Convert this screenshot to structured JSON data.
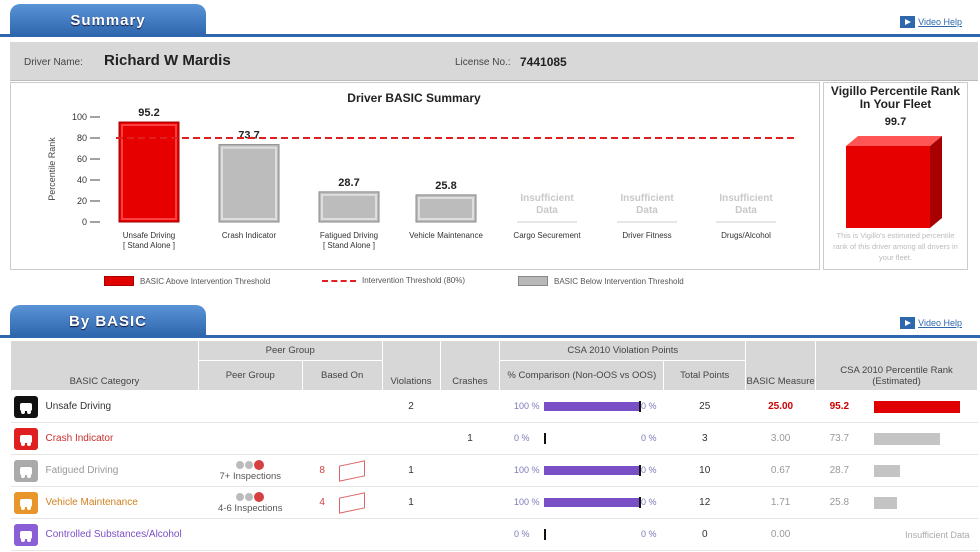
{
  "summary_tab": {
    "label": "Summary",
    "video_help": "Video Help"
  },
  "driver": {
    "name_label": "Driver Name:",
    "name": "Richard W Mardis",
    "license_label": "License No.:",
    "license": "7441085"
  },
  "chart_data": {
    "type": "bar",
    "title": "Driver BASIC Summary",
    "ylabel": "Percentile Rank",
    "ylim": [
      0,
      100
    ],
    "yticks": [
      "100",
      "80",
      "60",
      "40",
      "20",
      "0"
    ],
    "threshold": 80,
    "categories": [
      {
        "label": "Unsafe Driving",
        "sub": "[ Stand Alone ]",
        "value": 95.2,
        "value_label": "95.2",
        "status": "above"
      },
      {
        "label": "Crash Indicator",
        "sub": "",
        "value": 73.7,
        "value_label": "73.7",
        "status": "below"
      },
      {
        "label": "Fatigued Driving",
        "sub": "[ Stand Alone ]",
        "value": 28.7,
        "value_label": "28.7",
        "status": "below"
      },
      {
        "label": "Vehicle Maintenance",
        "sub": "",
        "value": 25.8,
        "value_label": "25.8",
        "status": "below"
      },
      {
        "label": "Cargo Securement",
        "sub": "",
        "value": null,
        "value_label": "Insufficient Data",
        "status": "insufficient"
      },
      {
        "label": "Driver Fitness",
        "sub": "",
        "value": null,
        "value_label": "Insufficient Data",
        "status": "insufficient"
      },
      {
        "label": "Drugs/Alcohol",
        "sub": "",
        "value": null,
        "value_label": "Insufficient Data",
        "status": "insufficient"
      }
    ],
    "legend": {
      "above": "BASIC Above Intervention Threshold",
      "threshold": "Intervention Threshold (80%)",
      "below": "BASIC Below Intervention Threshold"
    }
  },
  "fleet_rank": {
    "title": "Vigillo Percentile Rank In Your Fleet",
    "value": "99.7",
    "note": "This is Vigillo's estimated percentile rank of this driver among all drivers in your fleet."
  },
  "by_basic_tab": {
    "label": "By BASIC",
    "video_help": "Video Help"
  },
  "table": {
    "group_headers": {
      "peer_group": "Peer Group",
      "csa_points": "CSA 2010 Violation Points"
    },
    "headers": {
      "category": "BASIC Category",
      "peer_group": "Peer Group",
      "based_on": "Based On",
      "violations": "Violations",
      "crashes": "Crashes",
      "comparison": "% Comparison (Non-OOS vs OOS)",
      "total_points": "Total Points",
      "basic_measure": "BASIC Measure",
      "percentile": "CSA 2010 Percentile Rank (Estimated)"
    },
    "rows": [
      {
        "category": "Unsafe Driving",
        "cat_color": "#333333",
        "icon": "unsafe-driving-icon",
        "icon_color": "#111111",
        "peer": "",
        "based_on": "",
        "violations": "2",
        "crashes": "",
        "non_oos": "100 %",
        "oos": "0 %",
        "cmp_fraction": 1.0,
        "total_points": "25",
        "measure": "25.00",
        "measure_color": "#cc0000",
        "rank": "95.2",
        "rank_color": "#cc0000",
        "rank_fraction": 0.952,
        "rank_bar_color": "#e10000"
      },
      {
        "category": "Crash Indicator",
        "cat_color": "#c83030",
        "icon": "crash-icon",
        "icon_color": "#e02020",
        "peer": "",
        "based_on": "",
        "violations": "",
        "crashes": "1",
        "non_oos": "0 %",
        "oos": "0 %",
        "cmp_fraction": 0.0,
        "total_points": "3",
        "measure": "3.00",
        "measure_color": "#999999",
        "rank": "73.7",
        "rank_color": "#999999",
        "rank_fraction": 0.737,
        "rank_bar_color": "#c4c4c4"
      },
      {
        "category": "Fatigued Driving",
        "cat_color": "#999999",
        "icon": "fatigue-icon",
        "icon_color": "#aaaaaa",
        "peer": "7+ Inspections",
        "based_on": "8",
        "violations": "1",
        "crashes": "",
        "non_oos": "100 %",
        "oos": "0 %",
        "cmp_fraction": 1.0,
        "total_points": "10",
        "measure": "0.67",
        "measure_color": "#999999",
        "rank": "28.7",
        "rank_color": "#999999",
        "rank_fraction": 0.287,
        "rank_bar_color": "#c4c4c4"
      },
      {
        "category": "Vehicle Maintenance",
        "cat_color": "#d08020",
        "icon": "wrench-icon",
        "icon_color": "#e8962a",
        "peer": "4-6 Inspections",
        "based_on": "4",
        "violations": "1",
        "crashes": "",
        "non_oos": "100 %",
        "oos": "0 %",
        "cmp_fraction": 1.0,
        "total_points": "12",
        "measure": "1.71",
        "measure_color": "#999999",
        "rank": "25.8",
        "rank_color": "#999999",
        "rank_fraction": 0.258,
        "rank_bar_color": "#c4c4c4"
      },
      {
        "category": "Controlled Substances/Alcohol",
        "cat_color": "#7a4fc5",
        "icon": "bottle-icon",
        "icon_color": "#8a5fd5",
        "peer": "",
        "based_on": "",
        "violations": "",
        "crashes": "",
        "non_oos": "0 %",
        "oos": "0 %",
        "cmp_fraction": 0.0,
        "total_points": "0",
        "measure": "0.00",
        "measure_color": "#999999",
        "rank": "Insufficient Data",
        "rank_color": "#aaaaaa",
        "rank_fraction": 0,
        "rank_bar_color": "#c4c4c4"
      }
    ]
  }
}
